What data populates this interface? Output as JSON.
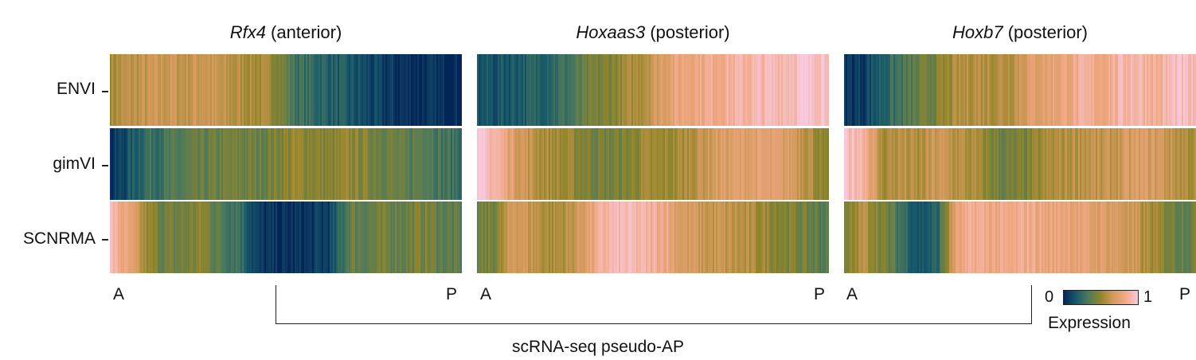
{
  "chart_data": {
    "type": "heatmap",
    "xlabel": "scRNA-seq pseudo-AP",
    "x_ends": {
      "start": "A",
      "end": "P"
    },
    "rows": [
      "ENVI",
      "gimVI",
      "SCNRMA"
    ],
    "colorbar": {
      "title": "Expression",
      "min_label": "0",
      "max_label": "1",
      "range": [
        0,
        1
      ],
      "colors": [
        "#04255a",
        "#185a6a",
        "#4e7a5a",
        "#93862a",
        "#d49a5c",
        "#f2a987",
        "#f8c8dc"
      ]
    },
    "panels": [
      {
        "gene": "Rfx4",
        "suffix": " (anterior)",
        "series": [
          {
            "name": "ENVI",
            "profile": [
              0.55,
              0.6,
              0.62,
              0.65,
              0.62,
              0.66,
              0.6,
              0.58,
              0.55,
              0.5,
              0.3,
              0.25,
              0.2,
              0.15,
              0.1,
              0.06,
              0.04,
              0.03,
              0.02,
              0.02
            ]
          },
          {
            "name": "gimVI",
            "profile": [
              0.02,
              0.15,
              0.28,
              0.3,
              0.35,
              0.38,
              0.4,
              0.42,
              0.4,
              0.45,
              0.5,
              0.48,
              0.45,
              0.5,
              0.45,
              0.42,
              0.35,
              0.4,
              0.3,
              0.28
            ]
          },
          {
            "name": "SCNRMA",
            "profile": [
              0.92,
              0.75,
              0.5,
              0.4,
              0.42,
              0.48,
              0.35,
              0.3,
              0.05,
              0.02,
              0.03,
              0.05,
              0.1,
              0.4,
              0.38,
              0.42,
              0.4,
              0.45,
              0.38,
              0.35
            ]
          }
        ]
      },
      {
        "gene": "Hoxaas3",
        "suffix": " (posterior)",
        "series": [
          {
            "name": "ENVI",
            "profile": [
              0.15,
              0.15,
              0.18,
              0.2,
              0.25,
              0.3,
              0.4,
              0.45,
              0.52,
              0.6,
              0.72,
              0.8,
              0.82,
              0.85,
              0.88,
              0.9,
              0.92,
              0.95,
              0.97,
              0.98
            ]
          },
          {
            "name": "gimVI",
            "profile": [
              0.95,
              0.9,
              0.72,
              0.6,
              0.55,
              0.5,
              0.45,
              0.42,
              0.45,
              0.52,
              0.5,
              0.55,
              0.62,
              0.7,
              0.72,
              0.74,
              0.72,
              0.7,
              0.6,
              0.4
            ]
          },
          {
            "name": "SCNRMA",
            "profile": [
              0.4,
              0.45,
              0.7,
              0.62,
              0.55,
              0.6,
              0.75,
              0.9,
              0.92,
              0.88,
              0.85,
              0.7,
              0.65,
              0.62,
              0.6,
              0.55,
              0.5,
              0.45,
              0.4,
              0.35
            ]
          }
        ]
      },
      {
        "gene": "Hoxb7",
        "suffix": " (posterior)",
        "series": [
          {
            "name": "ENVI",
            "profile": [
              0.05,
              0.08,
              0.2,
              0.3,
              0.38,
              0.45,
              0.55,
              0.6,
              0.58,
              0.6,
              0.72,
              0.75,
              0.8,
              0.85,
              0.82,
              0.9,
              0.92,
              0.85,
              0.95,
              0.9
            ]
          },
          {
            "name": "gimVI",
            "profile": [
              0.95,
              0.92,
              0.55,
              0.6,
              0.55,
              0.65,
              0.6,
              0.55,
              0.45,
              0.4,
              0.45,
              0.55,
              0.58,
              0.62,
              0.6,
              0.65,
              0.7,
              0.68,
              0.6,
              0.55
            ]
          },
          {
            "name": "SCNRMA",
            "profile": [
              0.4,
              0.6,
              0.45,
              0.3,
              0.15,
              0.2,
              0.75,
              0.85,
              0.82,
              0.8,
              0.85,
              0.78,
              0.8,
              0.75,
              0.72,
              0.68,
              0.6,
              0.5,
              0.42,
              0.4
            ]
          }
        ]
      }
    ]
  }
}
